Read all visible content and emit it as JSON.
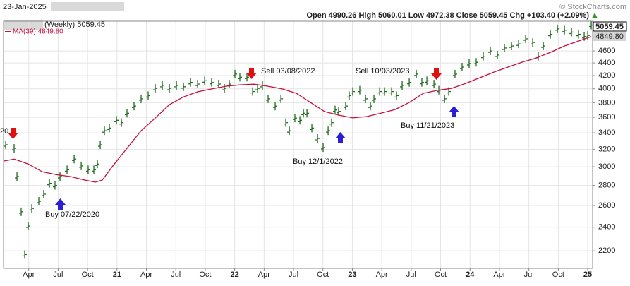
{
  "chart_data": {
    "type": "stock",
    "date": "23-Jan-2025",
    "source": "© StockCharts.com",
    "quote": "Open 4990.26  High 5060.01  Low 4972.38  Close 5059.45  Chg +103.40 (+2.09%)",
    "price_labels": [
      "5059.45",
      "4849.80"
    ],
    "annotations": [
      "Sell 03/08/2022",
      "Sell 10/03/2023",
      "Buy 12/1/2022",
      "Buy 11/21/2023",
      "Buy 07/22/2020",
      "20"
    ],
    "log_scale": true,
    "grid": true,
    "xlim": [
      0.43,
      60.5
    ],
    "ylim": [
      2062,
      5133
    ],
    "yticks": [
      2200,
      2400,
      2600,
      2800,
      3000,
      3200,
      3400,
      3600,
      3800,
      4000,
      4200,
      4400,
      4600
    ],
    "xticks": [
      {
        "value": 3,
        "label": "Apr"
      },
      {
        "value": 6,
        "label": "Jul"
      },
      {
        "value": 9,
        "label": "Oct"
      },
      {
        "value": 12,
        "label": "21"
      },
      {
        "value": 15,
        "label": "Apr"
      },
      {
        "value": 18,
        "label": "Jul"
      },
      {
        "value": 21,
        "label": "Oct"
      },
      {
        "value": 24,
        "label": "22"
      },
      {
        "value": 27,
        "label": "Apr"
      },
      {
        "value": 30,
        "label": "Jul"
      },
      {
        "value": 33,
        "label": "Oct"
      },
      {
        "value": 36,
        "label": "23"
      },
      {
        "value": 39,
        "label": "Apr"
      },
      {
        "value": 42,
        "label": "Jul"
      },
      {
        "value": 45,
        "label": "Oct"
      },
      {
        "value": 48,
        "label": "24"
      },
      {
        "value": 51,
        "label": "Apr"
      },
      {
        "value": 54,
        "label": "Jul"
      },
      {
        "value": 57,
        "label": "Oct"
      },
      {
        "value": 60,
        "label": "25"
      }
    ],
    "series": [
      {
        "name": "(Weekly) 5059.45",
        "style": "bars",
        "color": "#1f6b1f",
        "x": [
          0.65,
          1.51,
          1.8,
          2.23,
          2.59,
          2.95,
          3.31,
          4.03,
          4.53,
          5.11,
          5.68,
          6.19,
          6.91,
          7.63,
          8.35,
          9.06,
          9.64,
          10.0,
          10.29,
          10.72,
          11.22,
          11.94,
          12.45,
          13.02,
          13.74,
          14.46,
          15.18,
          15.9,
          16.62,
          17.34,
          18.06,
          18.78,
          19.5,
          20.22,
          20.94,
          21.65,
          22.37,
          22.95,
          23.45,
          24.03,
          24.53,
          25.25,
          25.83,
          26.33,
          26.83,
          27.41,
          28.13,
          28.71,
          29.21,
          29.57,
          30.14,
          30.65,
          31.01,
          31.37,
          31.87,
          32.45,
          33.02,
          33.53,
          33.88,
          34.24,
          34.6,
          35.32,
          35.68,
          36.04,
          36.76,
          37.34,
          37.84,
          38.2,
          38.78,
          39.28,
          40.0,
          40.5,
          41.08,
          41.8,
          42.52,
          43.09,
          43.6,
          44.32,
          44.82,
          45.4,
          45.83,
          46.47,
          47.19,
          47.91,
          48.63,
          49.35,
          50.07,
          50.79,
          51.51,
          52.23,
          52.95,
          53.67,
          54.39,
          54.96,
          55.47,
          56.19,
          56.91,
          57.63,
          58.35,
          59.06,
          59.64,
          60.0,
          60.36
        ],
        "values": [
          3253,
          3211,
          2893,
          2541,
          2170,
          2411,
          2572,
          2641,
          2711,
          2822,
          2800,
          2893,
          2967,
          3086,
          3010,
          2967,
          2967,
          3030,
          3253,
          3426,
          3460,
          3561,
          3530,
          3655,
          3753,
          3855,
          3900,
          4006,
          4050,
          4006,
          4050,
          4030,
          4095,
          4070,
          4120,
          4095,
          4070,
          4006,
          4070,
          4223,
          4175,
          4175,
          3960,
          4006,
          4050,
          3855,
          3753,
          3855,
          3530,
          3426,
          3590,
          3561,
          3655,
          3655,
          3460,
          3330,
          3220,
          3426,
          3530,
          3700,
          3680,
          3753,
          3900,
          3960,
          3980,
          3855,
          3753,
          3855,
          3960,
          3960,
          3960,
          3900,
          4050,
          4095,
          4223,
          4095,
          4120,
          4070,
          3980,
          3855,
          3960,
          4223,
          4333,
          4390,
          4410,
          4510,
          4600,
          4530,
          4650,
          4685,
          4720,
          4810,
          4745,
          4510,
          4685,
          4890,
          4990,
          4965,
          4930,
          4890,
          4850,
          4870,
          5059.45
        ]
      },
      {
        "name": "MA(39) 4849.80",
        "style": "line",
        "color": "#c8103c",
        "x": [
          0.43,
          1.51,
          2.95,
          4.39,
          5.83,
          7.27,
          8.71,
          9.78,
          10.5,
          11.58,
          13.02,
          14.46,
          15.9,
          17.34,
          18.78,
          20.22,
          21.65,
          23.09,
          24.53,
          25.97,
          27.41,
          28.85,
          30.29,
          31.73,
          33.17,
          34.6,
          36.04,
          37.48,
          38.92,
          40.36,
          41.8,
          43.24,
          44.68,
          46.12,
          47.55,
          48.99,
          50.43,
          51.87,
          53.31,
          54.75,
          56.19,
          57.63,
          59.06,
          60.36
        ],
        "values": [
          3063,
          3086,
          3031,
          2944,
          2913,
          2893,
          2856,
          2834,
          2856,
          3010,
          3211,
          3426,
          3590,
          3772,
          3882,
          3956,
          3998,
          4038,
          4058,
          4068,
          4038,
          3998,
          3934,
          3803,
          3677,
          3630,
          3593,
          3611,
          3655,
          3705,
          3803,
          3934,
          3977,
          4006,
          4080,
          4166,
          4254,
          4333,
          4413,
          4481,
          4576,
          4684,
          4770,
          4849.8
        ]
      }
    ]
  }
}
